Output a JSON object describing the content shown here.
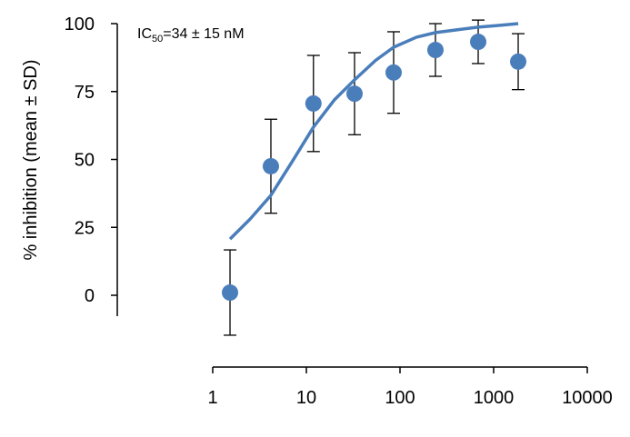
{
  "chart_data": {
    "type": "scatter",
    "title": "",
    "xlabel": "",
    "ylabel": "% inhibition (mean ± SD)",
    "x_scale": "log",
    "xlim": [
      1,
      10000
    ],
    "ylim": [
      0,
      100
    ],
    "x_ticks": [
      "1",
      "10",
      "100",
      "1000",
      "10000"
    ],
    "y_ticks": [
      "0",
      "25",
      "50",
      "75",
      "100"
    ],
    "annotation": {
      "main": "IC",
      "sub": "50",
      "rest": "=34 ± 15 nM"
    },
    "points": {
      "x": [
        1.53,
        4.18,
        11.9,
        32.7,
        85.5,
        239,
        684,
        1829
      ],
      "y": [
        1,
        47.5,
        70.6,
        74.2,
        82,
        90.3,
        93.3,
        86
      ],
      "sd": [
        15.7,
        17.3,
        17.7,
        15.1,
        15,
        9.7,
        8,
        10.3
      ]
    },
    "fit_curve": {
      "x": [
        1.53,
        2.5,
        4.18,
        7,
        11.9,
        20,
        32.7,
        55,
        85.5,
        150,
        239,
        420,
        684,
        1200,
        1829
      ],
      "y": [
        20.7,
        28,
        36.8,
        49,
        61.9,
        72,
        79.3,
        86.5,
        91.3,
        95,
        96.7,
        97.8,
        98.7,
        99.4,
        100
      ]
    },
    "colors": {
      "marker": "#4a7ebb",
      "line": "#4a7ebb",
      "axis": "#000000"
    },
    "grid": false,
    "legend": "none"
  }
}
